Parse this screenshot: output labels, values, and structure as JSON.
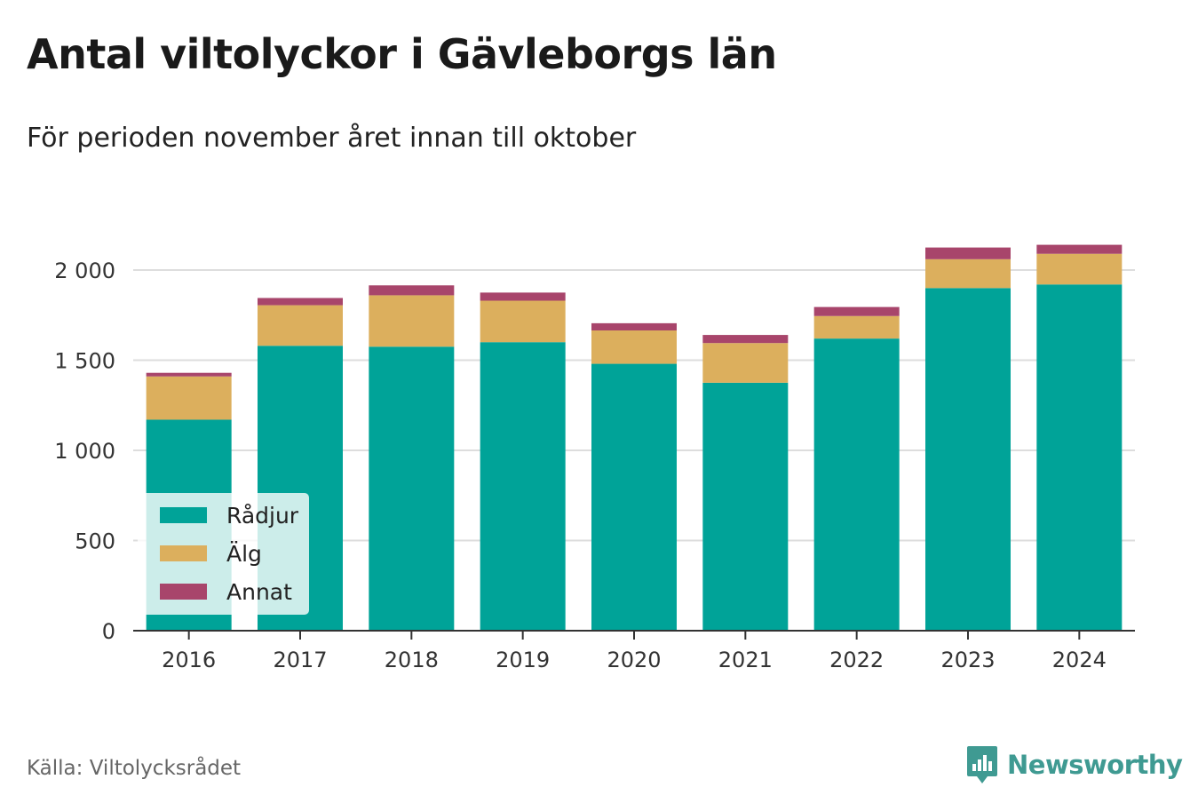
{
  "title": "Antal viltolyckor i Gävleborgs län",
  "subtitle": "För perioden november året innan till oktober",
  "source": "Källa: Viltolycksrådet",
  "brand": {
    "name": "Newsworthy",
    "icon": "newsworthy-logo-icon",
    "color": "#3f9a92"
  },
  "chart_data": {
    "type": "bar",
    "stacked": true,
    "categories": [
      "2016",
      "2017",
      "2018",
      "2019",
      "2020",
      "2021",
      "2022",
      "2023",
      "2024"
    ],
    "series": [
      {
        "name": "Rådjur",
        "color": "#00a398",
        "values": [
          1170,
          1580,
          1575,
          1600,
          1480,
          1375,
          1620,
          1900,
          1920
        ]
      },
      {
        "name": "Älg",
        "color": "#dcaf5d",
        "values": [
          240,
          225,
          285,
          230,
          185,
          220,
          125,
          160,
          170
        ]
      },
      {
        "name": "Annat",
        "color": "#a8456b",
        "values": [
          20,
          40,
          55,
          45,
          40,
          45,
          50,
          65,
          50
        ]
      }
    ],
    "yticks": [
      0,
      500,
      1000,
      1500,
      2000
    ],
    "ytick_labels": [
      "0",
      "500",
      "1 000",
      "1 500",
      "2 000"
    ],
    "ylim": [
      0,
      2000
    ],
    "grid": true,
    "legend_position": "bottom-left"
  }
}
